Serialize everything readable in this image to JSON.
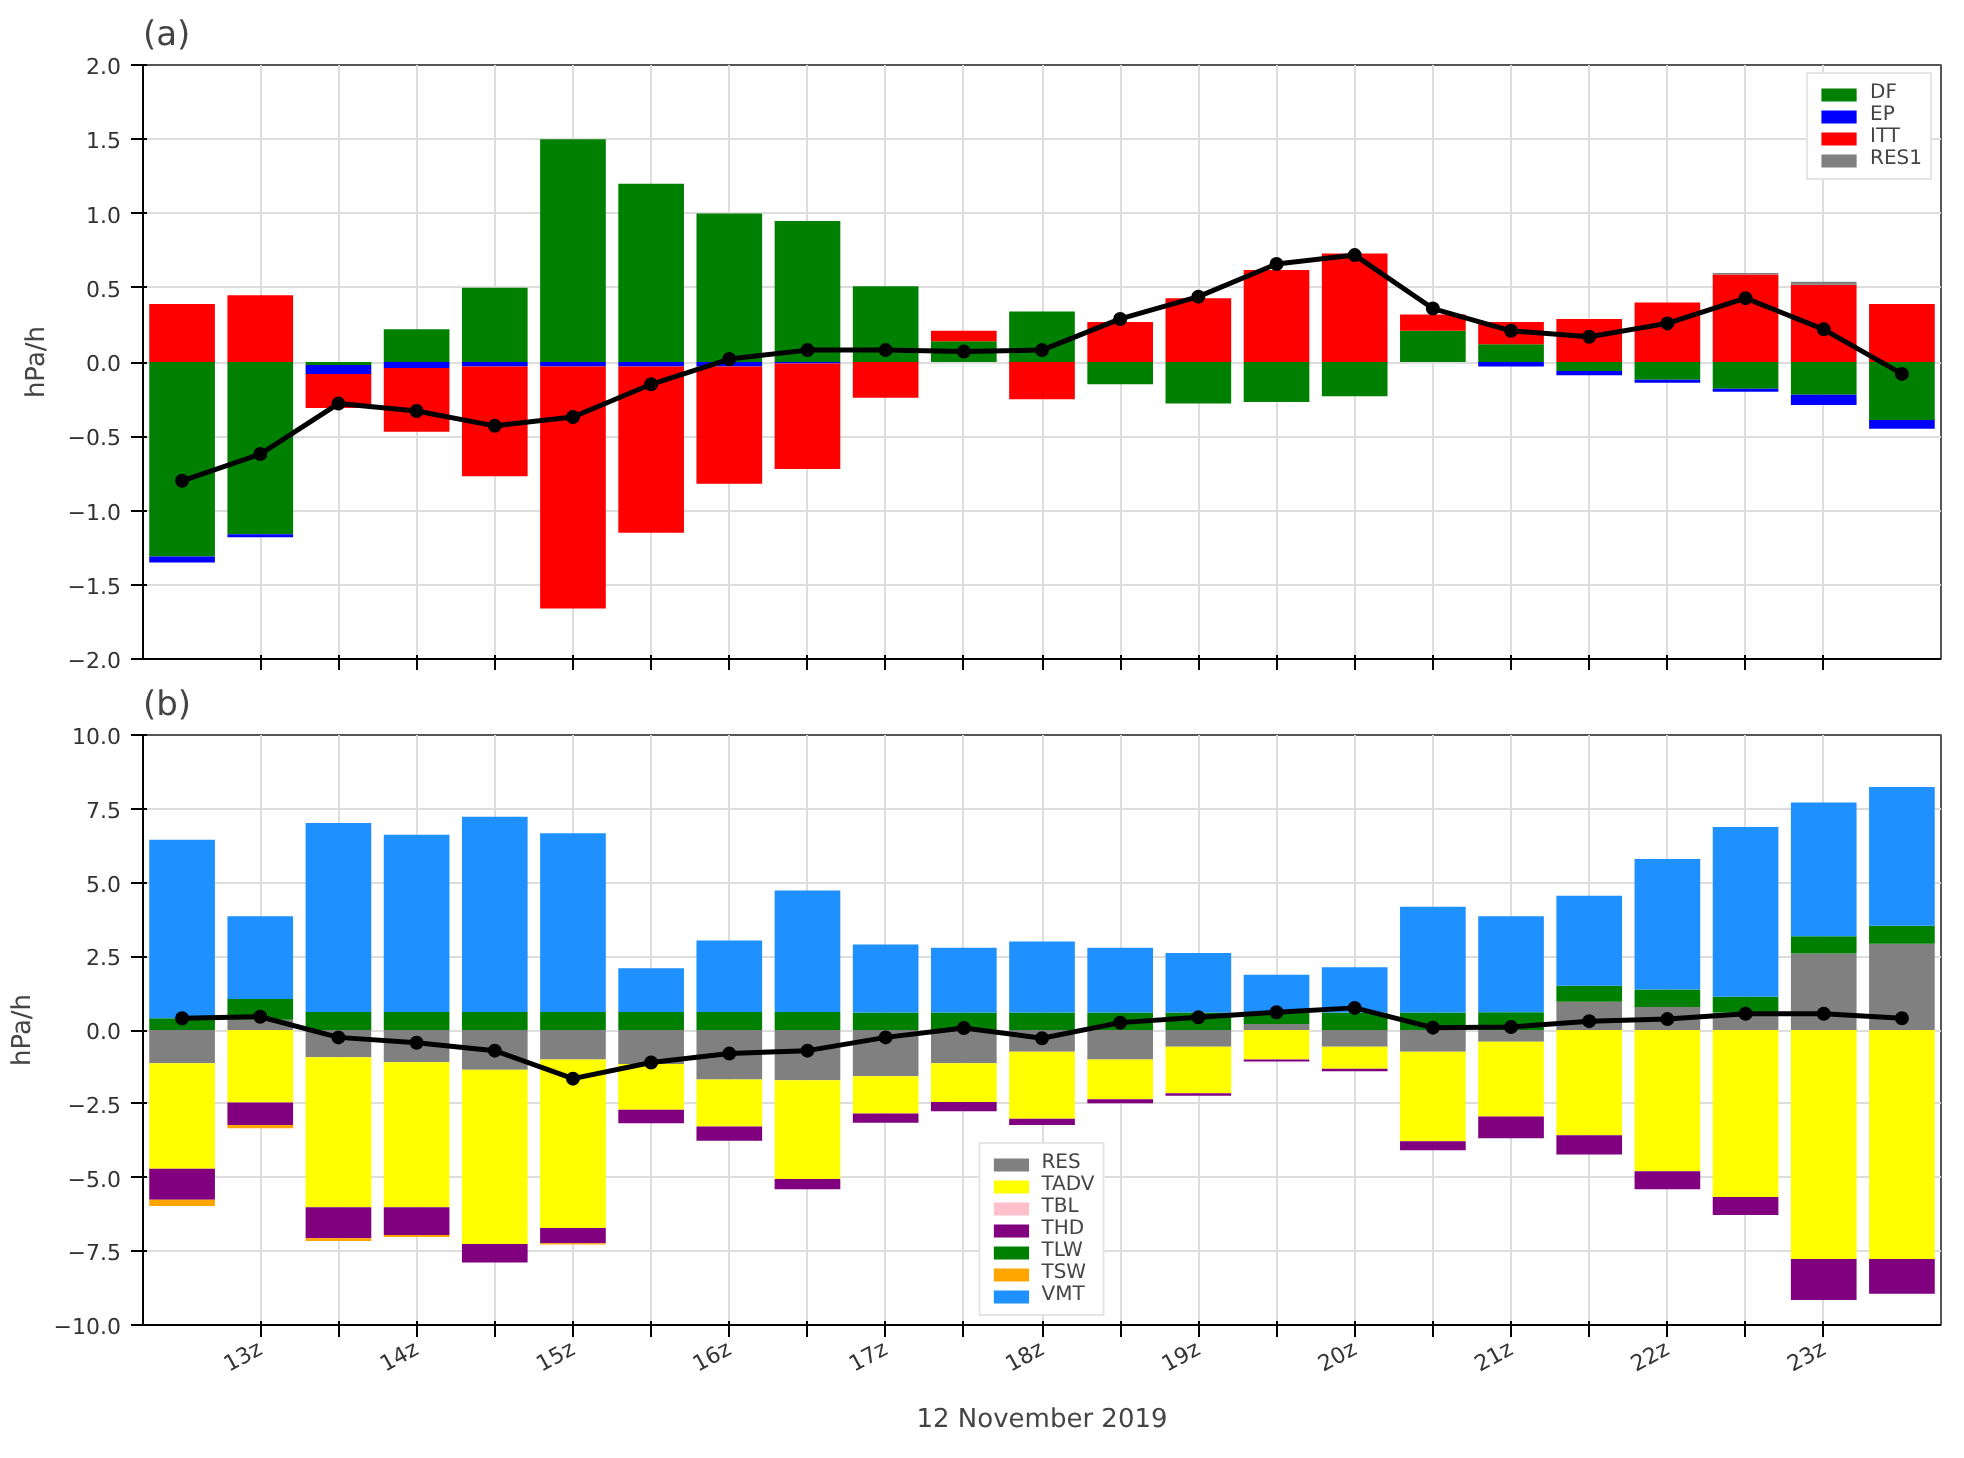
{
  "chart_data": [
    {
      "type": "bar",
      "title": "(a)",
      "ylabel": "hPa/h",
      "stacked": true,
      "grid": true,
      "legend": "top right",
      "tick_labels": "y",
      "x": [
        12.5,
        13,
        13.5,
        14,
        14.5,
        15,
        15.5,
        16,
        16.5,
        17,
        17.5,
        18,
        18.5,
        19,
        19.5,
        20,
        20.5,
        21,
        21.5,
        22,
        22.5,
        23,
        23.5
      ],
      "xlim": [
        12.25,
        23.75
      ],
      "xticks": [
        13,
        13.5,
        14,
        14.5,
        15,
        15.5,
        16,
        16.5,
        17,
        17.5,
        18,
        18.5,
        19,
        19.5,
        20,
        20.5,
        21,
        21.5,
        22,
        22.5,
        23
      ],
      "ylim": [
        -2.0,
        2.0
      ],
      "yticks": [
        {
          "value": -2,
          "label": "−2.0"
        },
        {
          "value": -1.5,
          "label": "−1.5"
        },
        {
          "value": -1,
          "label": "−1.0"
        },
        {
          "value": -0.5,
          "label": "−0.5"
        },
        {
          "value": 0,
          "label": "0.0"
        },
        {
          "value": 0.5,
          "label": "0.5"
        },
        {
          "value": 1,
          "label": "1.0"
        },
        {
          "value": 1.5,
          "label": "1.5"
        },
        {
          "value": 2,
          "label": "2.0"
        }
      ],
      "series": [
        {
          "name": "DF",
          "color": "#008000",
          "values": [
            -1.31,
            -1.16,
            -0.02,
            0.22,
            0.5,
            1.5,
            1.2,
            1.0,
            0.95,
            0.51,
            0.14,
            0.34,
            -0.15,
            -0.28,
            -0.27,
            -0.23,
            0.21,
            0.12,
            -0.06,
            -0.12,
            -0.18,
            -0.22,
            -0.39
          ]
        },
        {
          "name": "EP",
          "color": "#0000ff",
          "values": [
            -0.04,
            -0.02,
            -0.06,
            -0.04,
            -0.03,
            -0.03,
            -0.03,
            -0.03,
            -0.01,
            0,
            0,
            0,
            0,
            0,
            0,
            0,
            0,
            -0.03,
            -0.03,
            -0.02,
            -0.02,
            -0.07,
            -0.06
          ]
        },
        {
          "name": "ITT",
          "color": "#ff0000",
          "values": [
            0.39,
            0.45,
            -0.23,
            -0.43,
            -0.74,
            -1.63,
            -1.12,
            -0.79,
            -0.71,
            -0.24,
            0.07,
            -0.25,
            0.27,
            0.43,
            0.62,
            0.73,
            0.11,
            0.15,
            0.29,
            0.4,
            0.59,
            0.52,
            0.39
          ]
        },
        {
          "name": "RES1",
          "color": "#808080",
          "values": [
            0,
            0,
            0,
            0,
            0,
            0,
            0,
            0,
            0,
            0,
            0,
            0,
            0,
            0,
            0,
            0,
            0,
            0,
            0,
            0,
            0.01,
            0.02,
            0
          ]
        },
        {
          "type": "line",
          "marker": "circle",
          "color": "#000000",
          "values": [
            -0.8,
            -0.62,
            -0.28,
            -0.33,
            -0.43,
            -0.37,
            -0.15,
            0.02,
            0.08,
            0.08,
            0.07,
            0.08,
            0.29,
            0.44,
            0.66,
            0.72,
            0.36,
            0.21,
            0.17,
            0.26,
            0.43,
            0.22,
            -0.08
          ]
        }
      ]
    },
    {
      "type": "bar",
      "title": "(b)",
      "ylabel": "hPa/h",
      "xlabel": "12 November 2019",
      "stacked": true,
      "grid": true,
      "legend": "bottom",
      "x": [
        12.5,
        13,
        13.5,
        14,
        14.5,
        15,
        15.5,
        16,
        16.5,
        17,
        17.5,
        18,
        18.5,
        19,
        19.5,
        20,
        20.5,
        21,
        21.5,
        22,
        22.5,
        23,
        23.5
      ],
      "xlim": [
        12.25,
        23.75
      ],
      "xticks": [
        {
          "value": 13,
          "label": "13z"
        },
        {
          "value": 13.5,
          "label": null
        },
        {
          "value": 14,
          "label": "14z"
        },
        {
          "value": 14.5,
          "label": null
        },
        {
          "value": 15,
          "label": "15z"
        },
        {
          "value": 15.5,
          "label": null
        },
        {
          "value": 16,
          "label": "16z"
        },
        {
          "value": 16.5,
          "label": null
        },
        {
          "value": 17,
          "label": "17z"
        },
        {
          "value": 17.5,
          "label": null
        },
        {
          "value": 18,
          "label": "18z"
        },
        {
          "value": 18.5,
          "label": null
        },
        {
          "value": 19,
          "label": "19z"
        },
        {
          "value": 19.5,
          "label": null
        },
        {
          "value": 20,
          "label": "20z"
        },
        {
          "value": 20.5,
          "label": null
        },
        {
          "value": 21,
          "label": "21z"
        },
        {
          "value": 21.5,
          "label": null
        },
        {
          "value": 22,
          "label": "22z"
        },
        {
          "value": 22.5,
          "label": null
        },
        {
          "value": 23,
          "label": "23z"
        }
      ],
      "ylim": [
        -10.0,
        10.0
      ],
      "yticks": [
        {
          "value": -10,
          "label": "−10.0"
        },
        {
          "value": -7.5,
          "label": "−7.5"
        },
        {
          "value": -5,
          "label": "−5.0"
        },
        {
          "value": -2.5,
          "label": "−2.5"
        },
        {
          "value": 0,
          "label": "0.0"
        },
        {
          "value": 2.5,
          "label": "2.5"
        },
        {
          "value": 5,
          "label": "5.0"
        },
        {
          "value": 7.5,
          "label": "7.5"
        },
        {
          "value": 10,
          "label": "10.0"
        }
      ],
      "series": [
        {
          "name": "RES",
          "color": "#808080",
          "values": [
            -1.13,
            0.35,
            -0.92,
            -1.09,
            -1.35,
            -1.0,
            -1.15,
            -1.68,
            -1.7,
            -1.57,
            -1.13,
            -0.74,
            -1.0,
            -0.57,
            0.2,
            -0.57,
            -0.74,
            -0.4,
            0.96,
            0.78,
            0.59,
            2.59,
            2.92
          ]
        },
        {
          "name": "TADV",
          "color": "#ffff00",
          "values": [
            -3.57,
            -2.46,
            -5.09,
            -4.92,
            -5.9,
            -5.71,
            -1.55,
            -1.59,
            -3.35,
            -1.26,
            -1.31,
            -2.27,
            -1.35,
            -1.57,
            -1.0,
            -0.74,
            -3.03,
            -2.53,
            -3.57,
            -4.79,
            -5.66,
            -7.76,
            -7.76
          ]
        },
        {
          "name": "TBL",
          "color": "#ffc0cb",
          "values": [
            0,
            0,
            0,
            0,
            0,
            0,
            0,
            0,
            0,
            0,
            0,
            0,
            0,
            0,
            0,
            0,
            0,
            0,
            0,
            0,
            0,
            0,
            0
          ]
        },
        {
          "name": "THD",
          "color": "#800080",
          "values": [
            -1.05,
            -0.76,
            -1.05,
            -0.94,
            -0.63,
            -0.52,
            -0.46,
            -0.48,
            -0.35,
            -0.31,
            -0.31,
            -0.21,
            -0.13,
            -0.09,
            -0.07,
            -0.09,
            -0.31,
            -0.74,
            -0.65,
            -0.61,
            -0.61,
            -1.39,
            -1.18
          ]
        },
        {
          "name": "TLW",
          "color": "#008000",
          "values": [
            0.4,
            0.7,
            0.61,
            0.61,
            0.61,
            0.61,
            0.61,
            0.61,
            0.61,
            0.59,
            0.59,
            0.59,
            0.59,
            0.59,
            0.4,
            0.59,
            0.59,
            0.6,
            0.54,
            0.59,
            0.54,
            0.59,
            0.61
          ]
        },
        {
          "name": "TSW",
          "color": "#ffa500",
          "values": [
            -0.22,
            -0.11,
            -0.09,
            -0.07,
            0,
            -0.04,
            0,
            0,
            0,
            0,
            0,
            0,
            0,
            0,
            0,
            0,
            0,
            0,
            0,
            0,
            0,
            0,
            0
          ]
        },
        {
          "name": "VMT",
          "color": "#1e90ff",
          "values": [
            6.05,
            2.81,
            6.41,
            6.01,
            6.62,
            6.06,
            1.48,
            2.42,
            4.12,
            2.31,
            2.2,
            2.41,
            2.2,
            2.02,
            1.27,
            1.54,
            3.59,
            3.26,
            3.05,
            4.43,
            5.75,
            4.53,
            4.71
          ]
        },
        {
          "type": "line",
          "marker": "circle",
          "color": "#000000",
          "values": [
            0.4,
            0.45,
            -0.25,
            -0.43,
            -0.7,
            -1.65,
            -1.1,
            -0.8,
            -0.7,
            -0.25,
            0.07,
            -0.28,
            0.25,
            0.43,
            0.6,
            0.75,
            0.08,
            0.1,
            0.3,
            0.37,
            0.55,
            0.55,
            0.4
          ]
        }
      ]
    }
  ]
}
